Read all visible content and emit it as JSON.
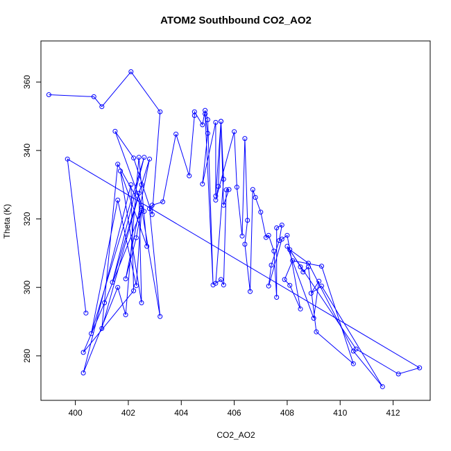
{
  "chart_data": {
    "type": "line",
    "title": "ATOM2 Southbound CO2_AO2",
    "xlabel": "CO2_AO2",
    "ylabel": "Theta (K)",
    "xlim": [
      398.7,
      413.4
    ],
    "ylim": [
      267.0,
      372.0
    ],
    "xticks": [
      400,
      402,
      404,
      406,
      408,
      410,
      412
    ],
    "yticks": [
      280,
      300,
      320,
      340,
      360
    ],
    "grid": false,
    "legend": "none",
    "series_color": "#0000ff",
    "markers": "open-circle",
    "series": [
      {
        "x": [
          399.0,
          400.7,
          401.0,
          402.1,
          403.2,
          402.9,
          402.2,
          401.5,
          402.6,
          401.6,
          401.0,
          402.5,
          401.4,
          402.6,
          400.6,
          401.6,
          402.3,
          402.5,
          401.1,
          400.3,
          402.2,
          402.1,
          400.3,
          401.6,
          401.9,
          402.4,
          402.7,
          401.7,
          402.5,
          402.4,
          402.8,
          401.9,
          402.3,
          402.5,
          403.2,
          402.8,
          402.9,
          403.3,
          403.8,
          404.3,
          404.5,
          404.5,
          404.8,
          404.9,
          405.0,
          405.2,
          404.9,
          405.0,
          404.8,
          405.3,
          405.3,
          405.5,
          405.6,
          405.3,
          405.5,
          405.6,
          405.7,
          405.8,
          405.6,
          405.5,
          405.4,
          405.3,
          406.0,
          406.1,
          406.3,
          406.4,
          406.5,
          406.4,
          406.6,
          406.7,
          406.8,
          407.0,
          407.2,
          407.3,
          407.5,
          407.6,
          407.6,
          407.8,
          407.7,
          407.4,
          407.3,
          407.8,
          408.0,
          408.5,
          408.1,
          407.9,
          408.2,
          409.3,
          410.5,
          409.1,
          408.8,
          408.6,
          408.5,
          408.1,
          408.8,
          410.5,
          411.6,
          409.3,
          408.9,
          409.2,
          409.0,
          408.0,
          410.6,
          412.2,
          413.0,
          399.7,
          400.4
        ],
        "y": [
          356.3,
          355.7,
          352.8,
          363.0,
          351.3,
          321.3,
          337.8,
          345.6,
          322.2,
          336.0,
          288.0,
          330.0,
          301.5,
          338.0,
          286.5,
          325.5,
          300.5,
          322.5,
          295.5,
          281.0,
          299.0,
          330.0,
          275.0,
          300.0,
          292.0,
          338.0,
          312.0,
          334.0,
          295.5,
          327.5,
          337.5,
          302.5,
          314.5,
          323.0,
          291.5,
          323.0,
          324.0,
          325.0,
          344.8,
          332.6,
          350.2,
          351.3,
          347.5,
          351.7,
          349.0,
          300.7,
          350.7,
          345.0,
          330.2,
          348.2,
          326.7,
          348.5,
          331.6,
          301.2,
          302.3,
          300.7,
          328.5,
          328.6,
          324.0,
          348.5,
          329.5,
          325.5,
          345.5,
          329.3,
          315.0,
          343.5,
          319.6,
          312.6,
          298.8,
          328.6,
          326.3,
          322.0,
          314.6,
          315.2,
          310.6,
          297.1,
          317.4,
          318.2,
          313.7,
          306.5,
          300.4,
          314.1,
          315.2,
          293.7,
          300.6,
          302.3,
          307.8,
          306.2,
          277.7,
          287.0,
          306.0,
          304.5,
          306.0,
          311.0,
          307.1,
          281.4,
          271.0,
          300.4,
          298.3,
          301.8,
          291.0,
          312.0,
          282.0,
          274.7,
          276.5,
          337.5,
          292.5
        ]
      }
    ]
  }
}
